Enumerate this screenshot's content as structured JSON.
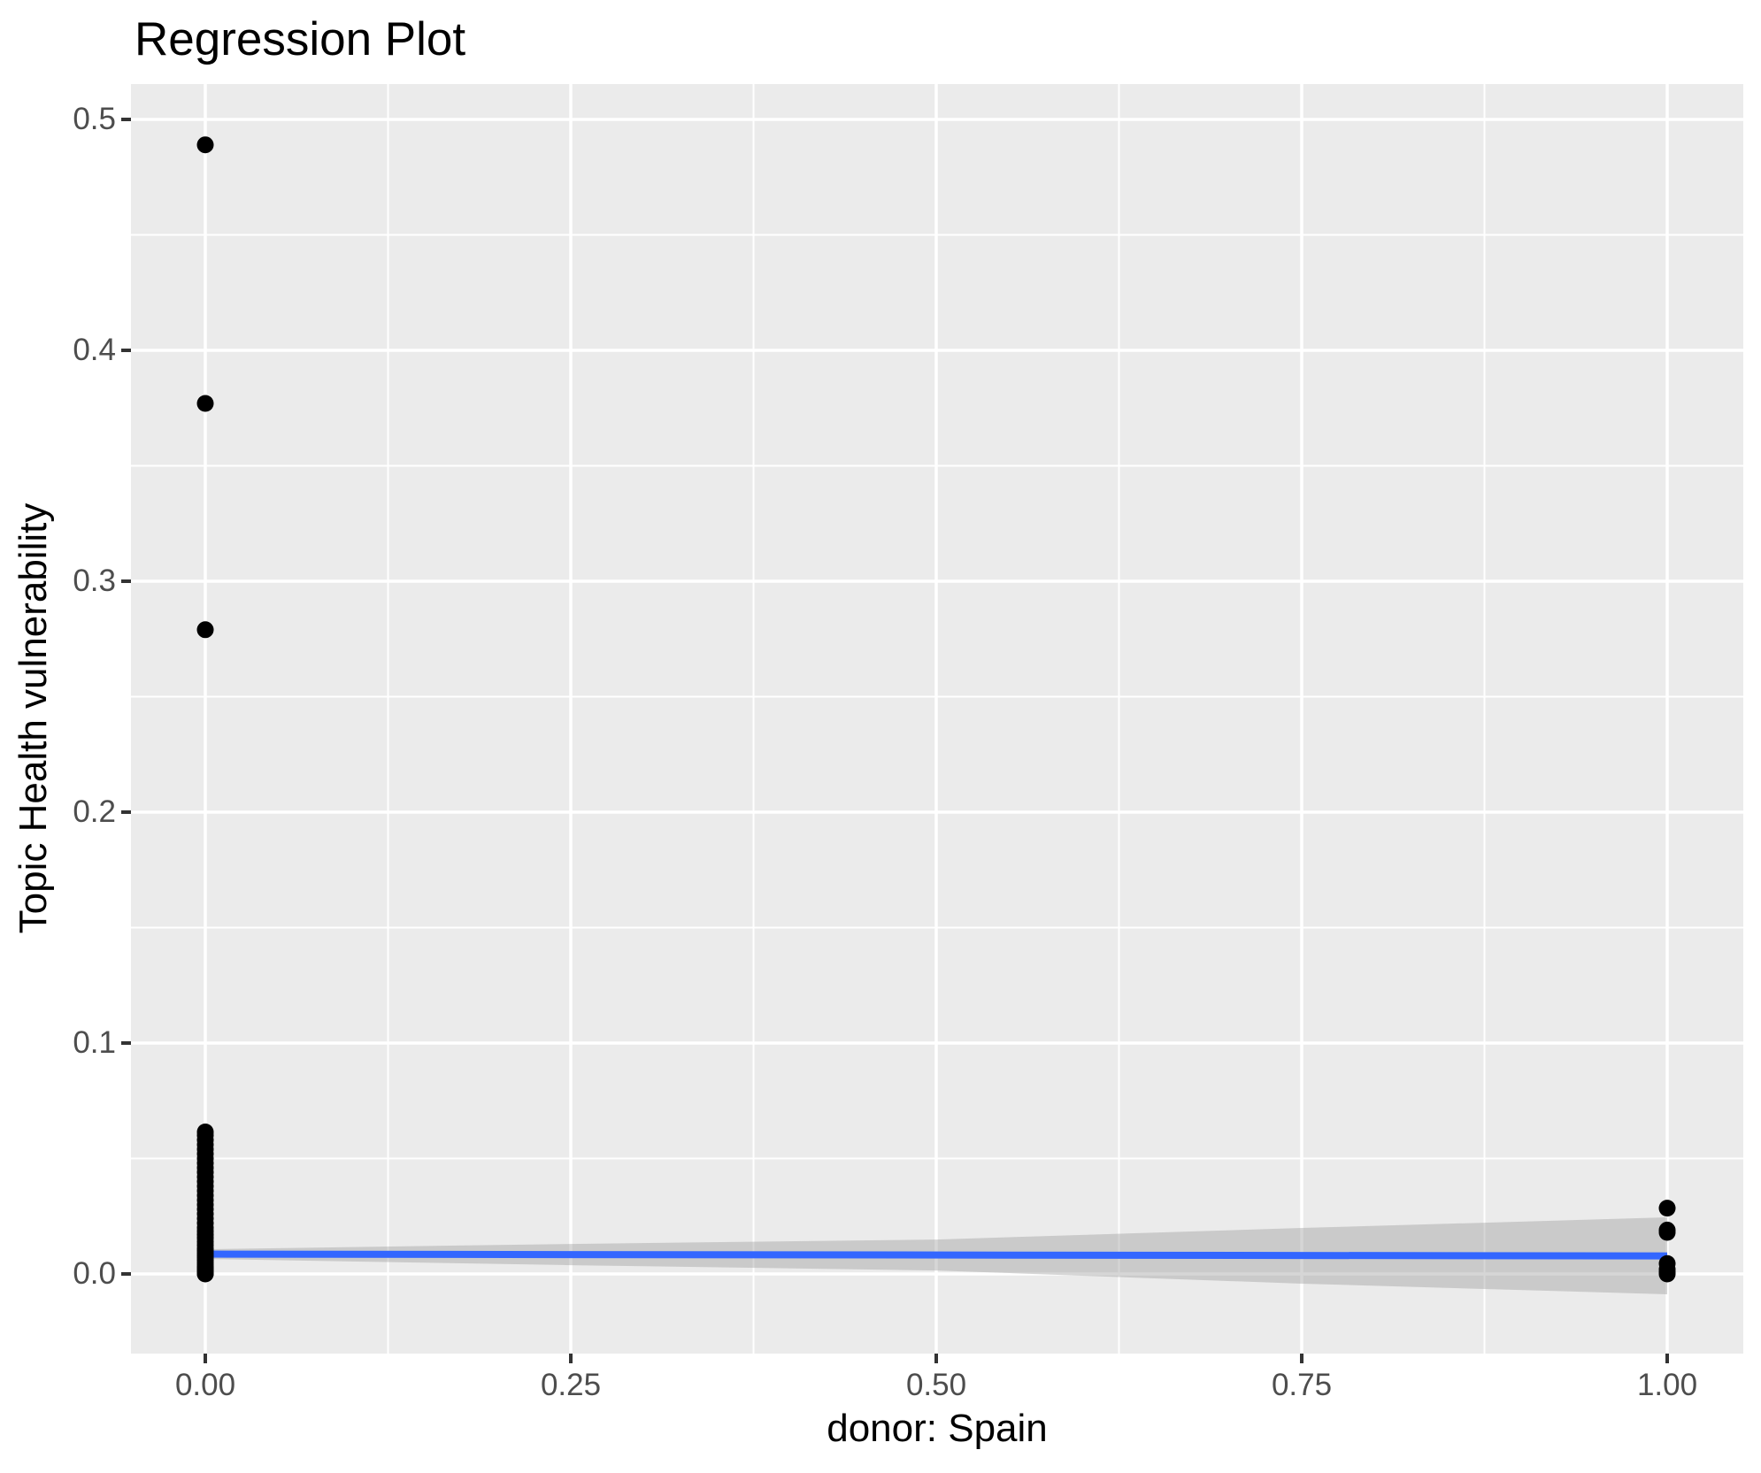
{
  "title": "Regression Plot",
  "x_axis_title": "donor: Spain",
  "y_axis_title": "Topic Health vulnerability",
  "colors": {
    "panel_background": "#EBEBEB",
    "grid_line": "#FFFFFF",
    "point": "#000000",
    "regression_line": "#3366FF",
    "confidence_band": "#999999",
    "confidence_band_opacity": 0.4,
    "tick_label": "#4D4D4D",
    "tick_mark": "#333333",
    "title_text": "#000000"
  },
  "chart_data": {
    "type": "scatter",
    "title": "Regression Plot",
    "xlabel": "donor: Spain",
    "ylabel": "Topic Health vulnerability",
    "xlim": [
      -0.0508,
      1.052
    ],
    "ylim": [
      -0.0345,
      0.5153
    ],
    "grid": true,
    "legend_position": "none",
    "x_ticks": {
      "values": [
        0,
        0.25,
        0.5,
        0.75,
        1.0
      ],
      "labels": [
        "0.00",
        "0.25",
        "0.50",
        "0.75",
        "1.00"
      ]
    },
    "y_ticks": {
      "values": [
        0,
        0.1,
        0.2,
        0.3,
        0.4,
        0.5
      ],
      "labels": [
        "0.0",
        "0.1",
        "0.2",
        "0.3",
        "0.4",
        "0.5"
      ]
    },
    "x_minor_gridlines": [
      0.125,
      0.375,
      0.625,
      0.875
    ],
    "y_minor_gridlines": [
      0.05,
      0.15,
      0.25,
      0.35,
      0.45
    ],
    "point_groups": [
      {
        "name": "donor-Spain-0",
        "x": 0,
        "y_values": [
          0.489,
          0.377,
          0.279,
          0.0615,
          0.06,
          0.058,
          0.056,
          0.054,
          0.052,
          0.05,
          0.048,
          0.046,
          0.044,
          0.042,
          0.04,
          0.038,
          0.036,
          0.034,
          0.032,
          0.03,
          0.028,
          0.026,
          0.024,
          0.022,
          0.02,
          0.0185,
          0.017,
          0.0155,
          0.014,
          0.0125,
          0.011,
          0.01,
          0.009,
          0.008,
          0.007,
          0.006,
          0.005,
          0.004,
          0.003,
          0.0025,
          0.002,
          0.0015,
          0.001,
          0.0008,
          0.0005,
          0.0003,
          0.0001,
          0.0
        ]
      },
      {
        "name": "donor-Spain-1",
        "x": 1,
        "y_values": [
          0.0285,
          0.019,
          0.018,
          0.0045,
          0.002,
          0.0008,
          0.0
        ]
      }
    ],
    "regression_line": {
      "x": [
        0,
        1
      ],
      "y": [
        0.0086,
        0.0078
      ]
    },
    "confidence_band": {
      "x": [
        0,
        0.25,
        0.5,
        0.75,
        1.0
      ],
      "upper": [
        0.0107,
        0.013,
        0.0149,
        0.0199,
        0.0245
      ],
      "lower": [
        0.0065,
        0.0038,
        0.0015,
        -0.0042,
        -0.0088
      ]
    },
    "point_radius_px": 9.5
  }
}
